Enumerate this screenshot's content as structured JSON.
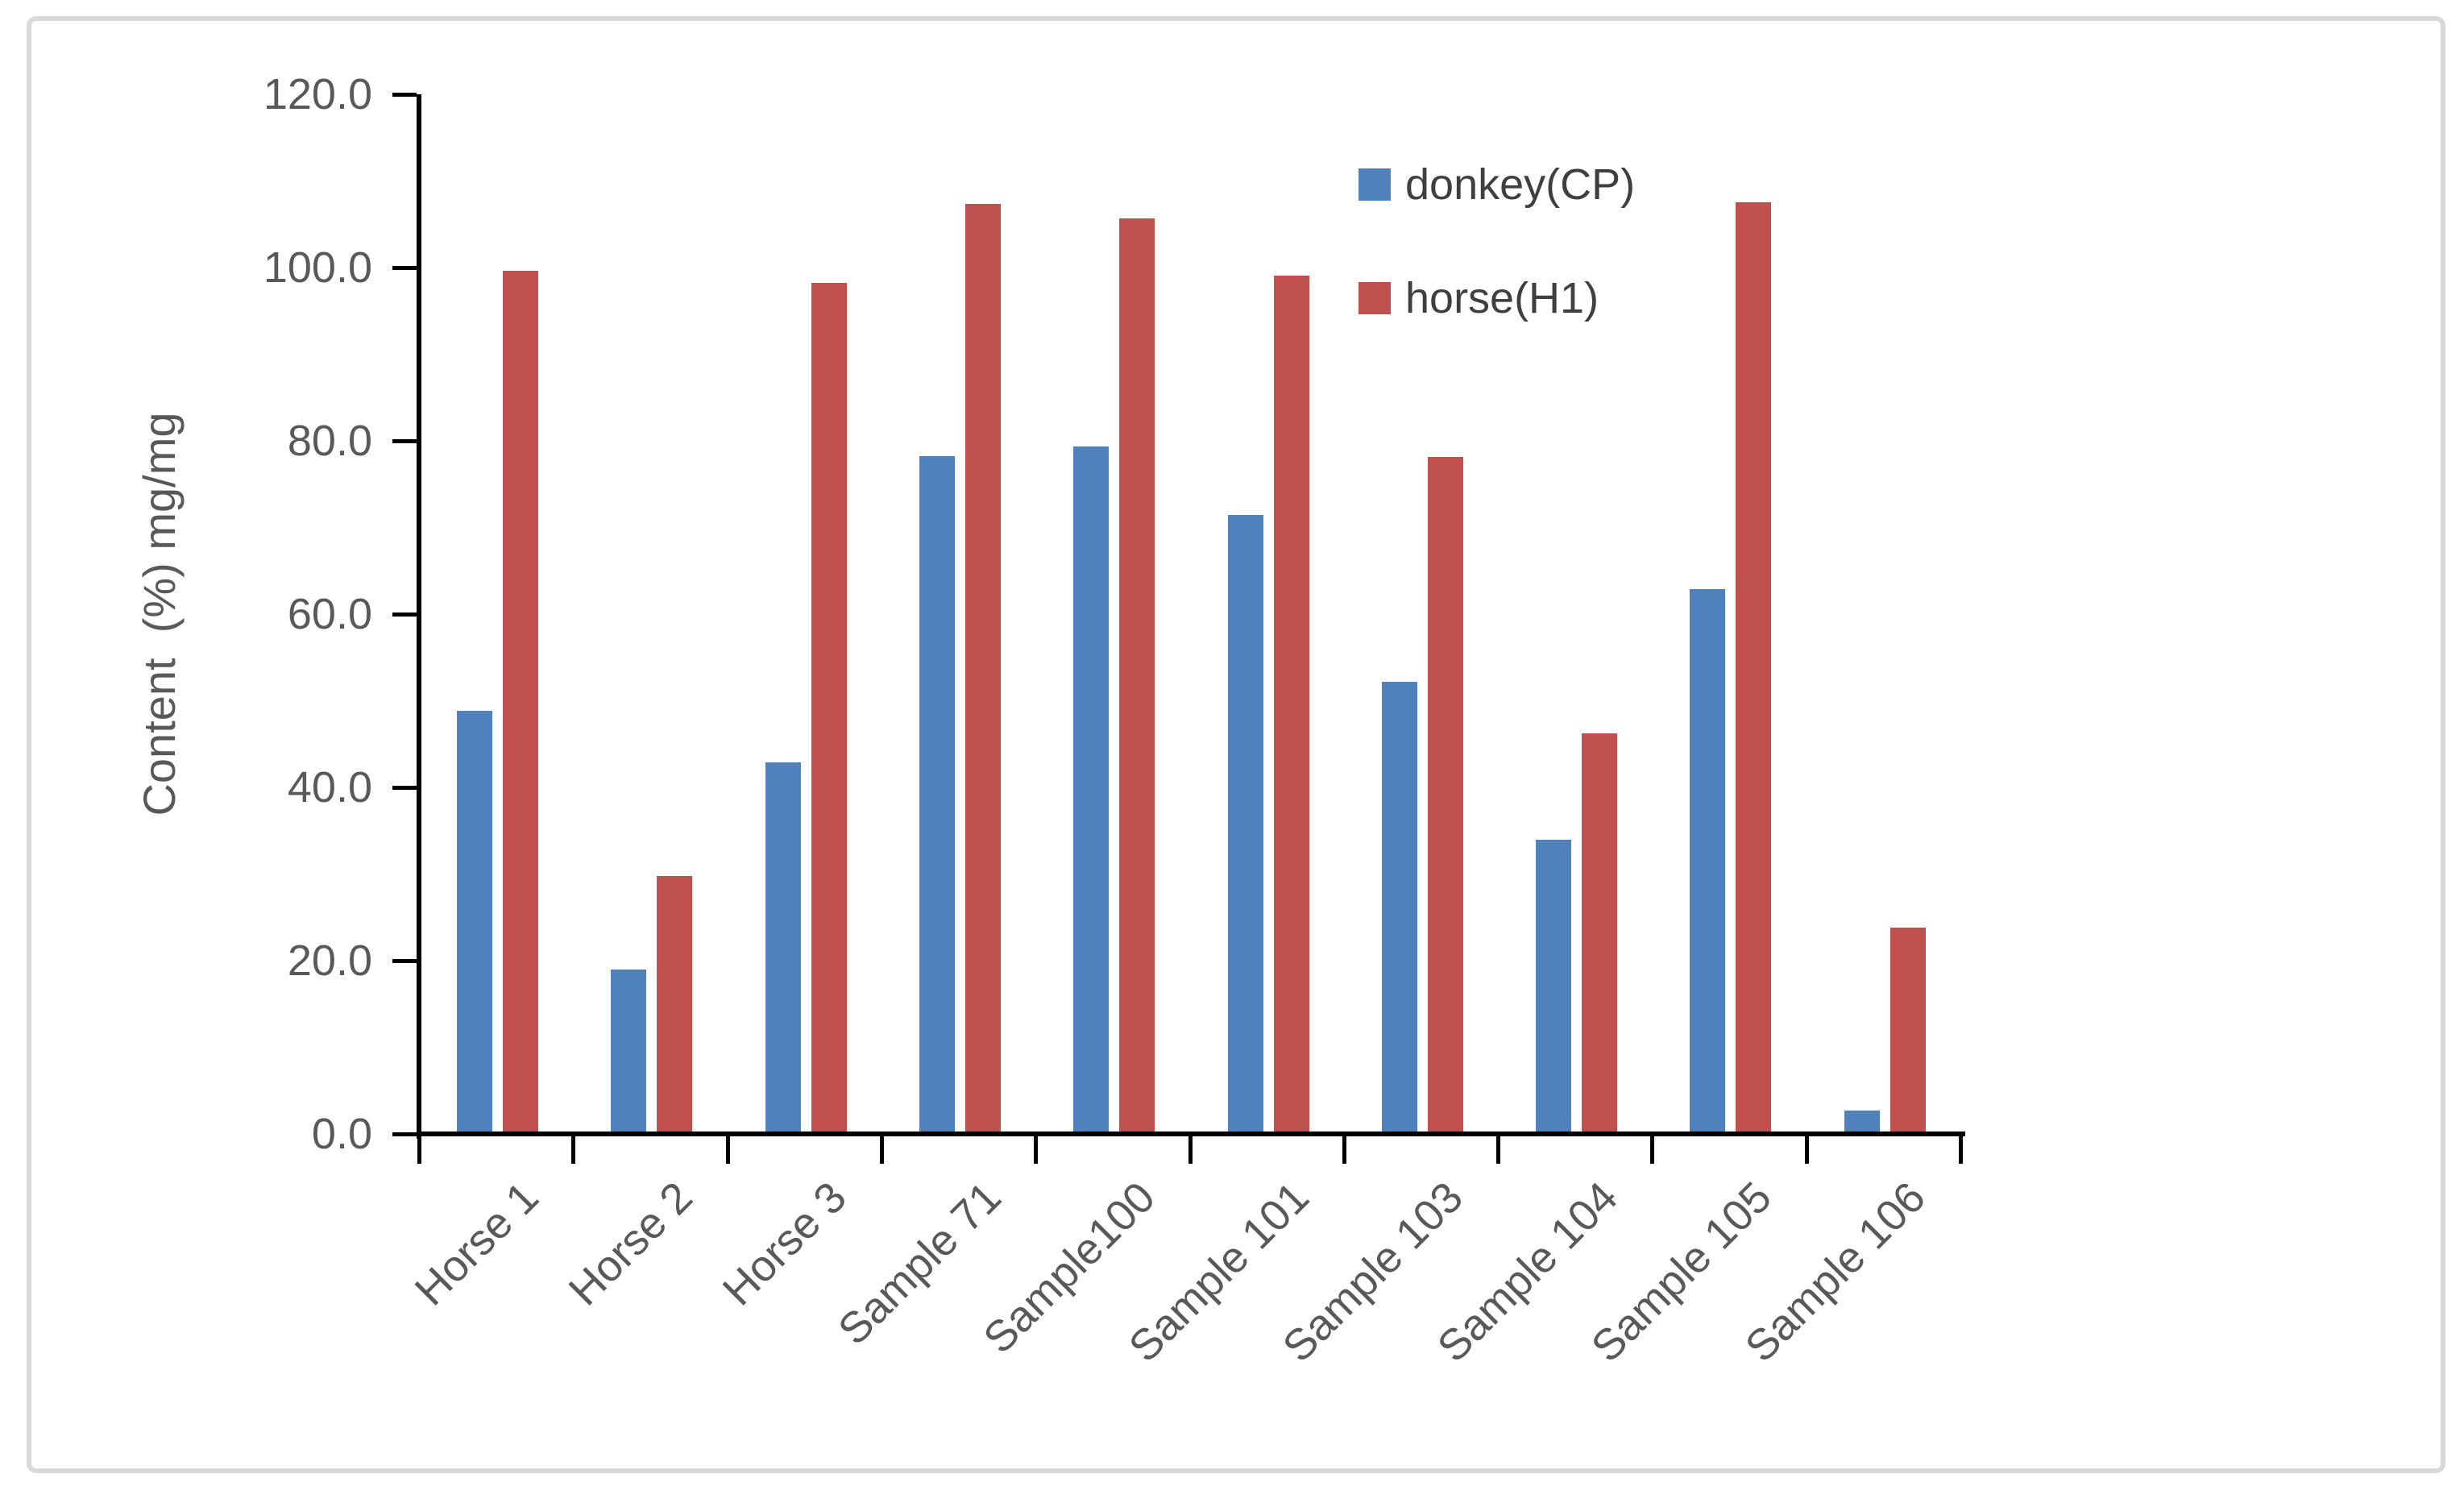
{
  "figure": {
    "background": "#FFFFFF",
    "frame_border_color": "#D9D9D9"
  },
  "chart_data": {
    "type": "bar",
    "title": "",
    "xlabel": "",
    "ylabel": "Content  (%) mg/mg",
    "categories": [
      "Horse 1",
      "Horse 2",
      "Horse 3",
      "Sample 71",
      "Sample100",
      "Sample 101",
      "Sample 103",
      "Sample 104",
      "Sample 105",
      "Sample 106"
    ],
    "series": [
      {
        "name": "donkey(CP)",
        "color": "#4F81BD",
        "values": [
          49.0,
          19.1,
          43.0,
          78.4,
          79.5,
          71.6,
          52.3,
          34.1,
          63.0,
          2.8
        ]
      },
      {
        "name": "horse(H1)",
        "color": "#C0504D",
        "values": [
          99.8,
          29.9,
          98.4,
          107.5,
          105.8,
          99.2,
          78.3,
          46.4,
          107.7,
          24.0
        ]
      }
    ],
    "ylim": [
      0,
      120
    ],
    "ytick_values": [
      120,
      100,
      80,
      60,
      40,
      20,
      0
    ],
    "ytick_labels": [
      "120.0",
      "100.0",
      "80.0",
      "60.0",
      "40.0",
      "20.0",
      "0.0"
    ],
    "grid": false,
    "legend_position": "top-right-inside",
    "axis_color": "#000000",
    "tick_label_color": "#595959",
    "legend_text_color": "#3F3F3F"
  }
}
